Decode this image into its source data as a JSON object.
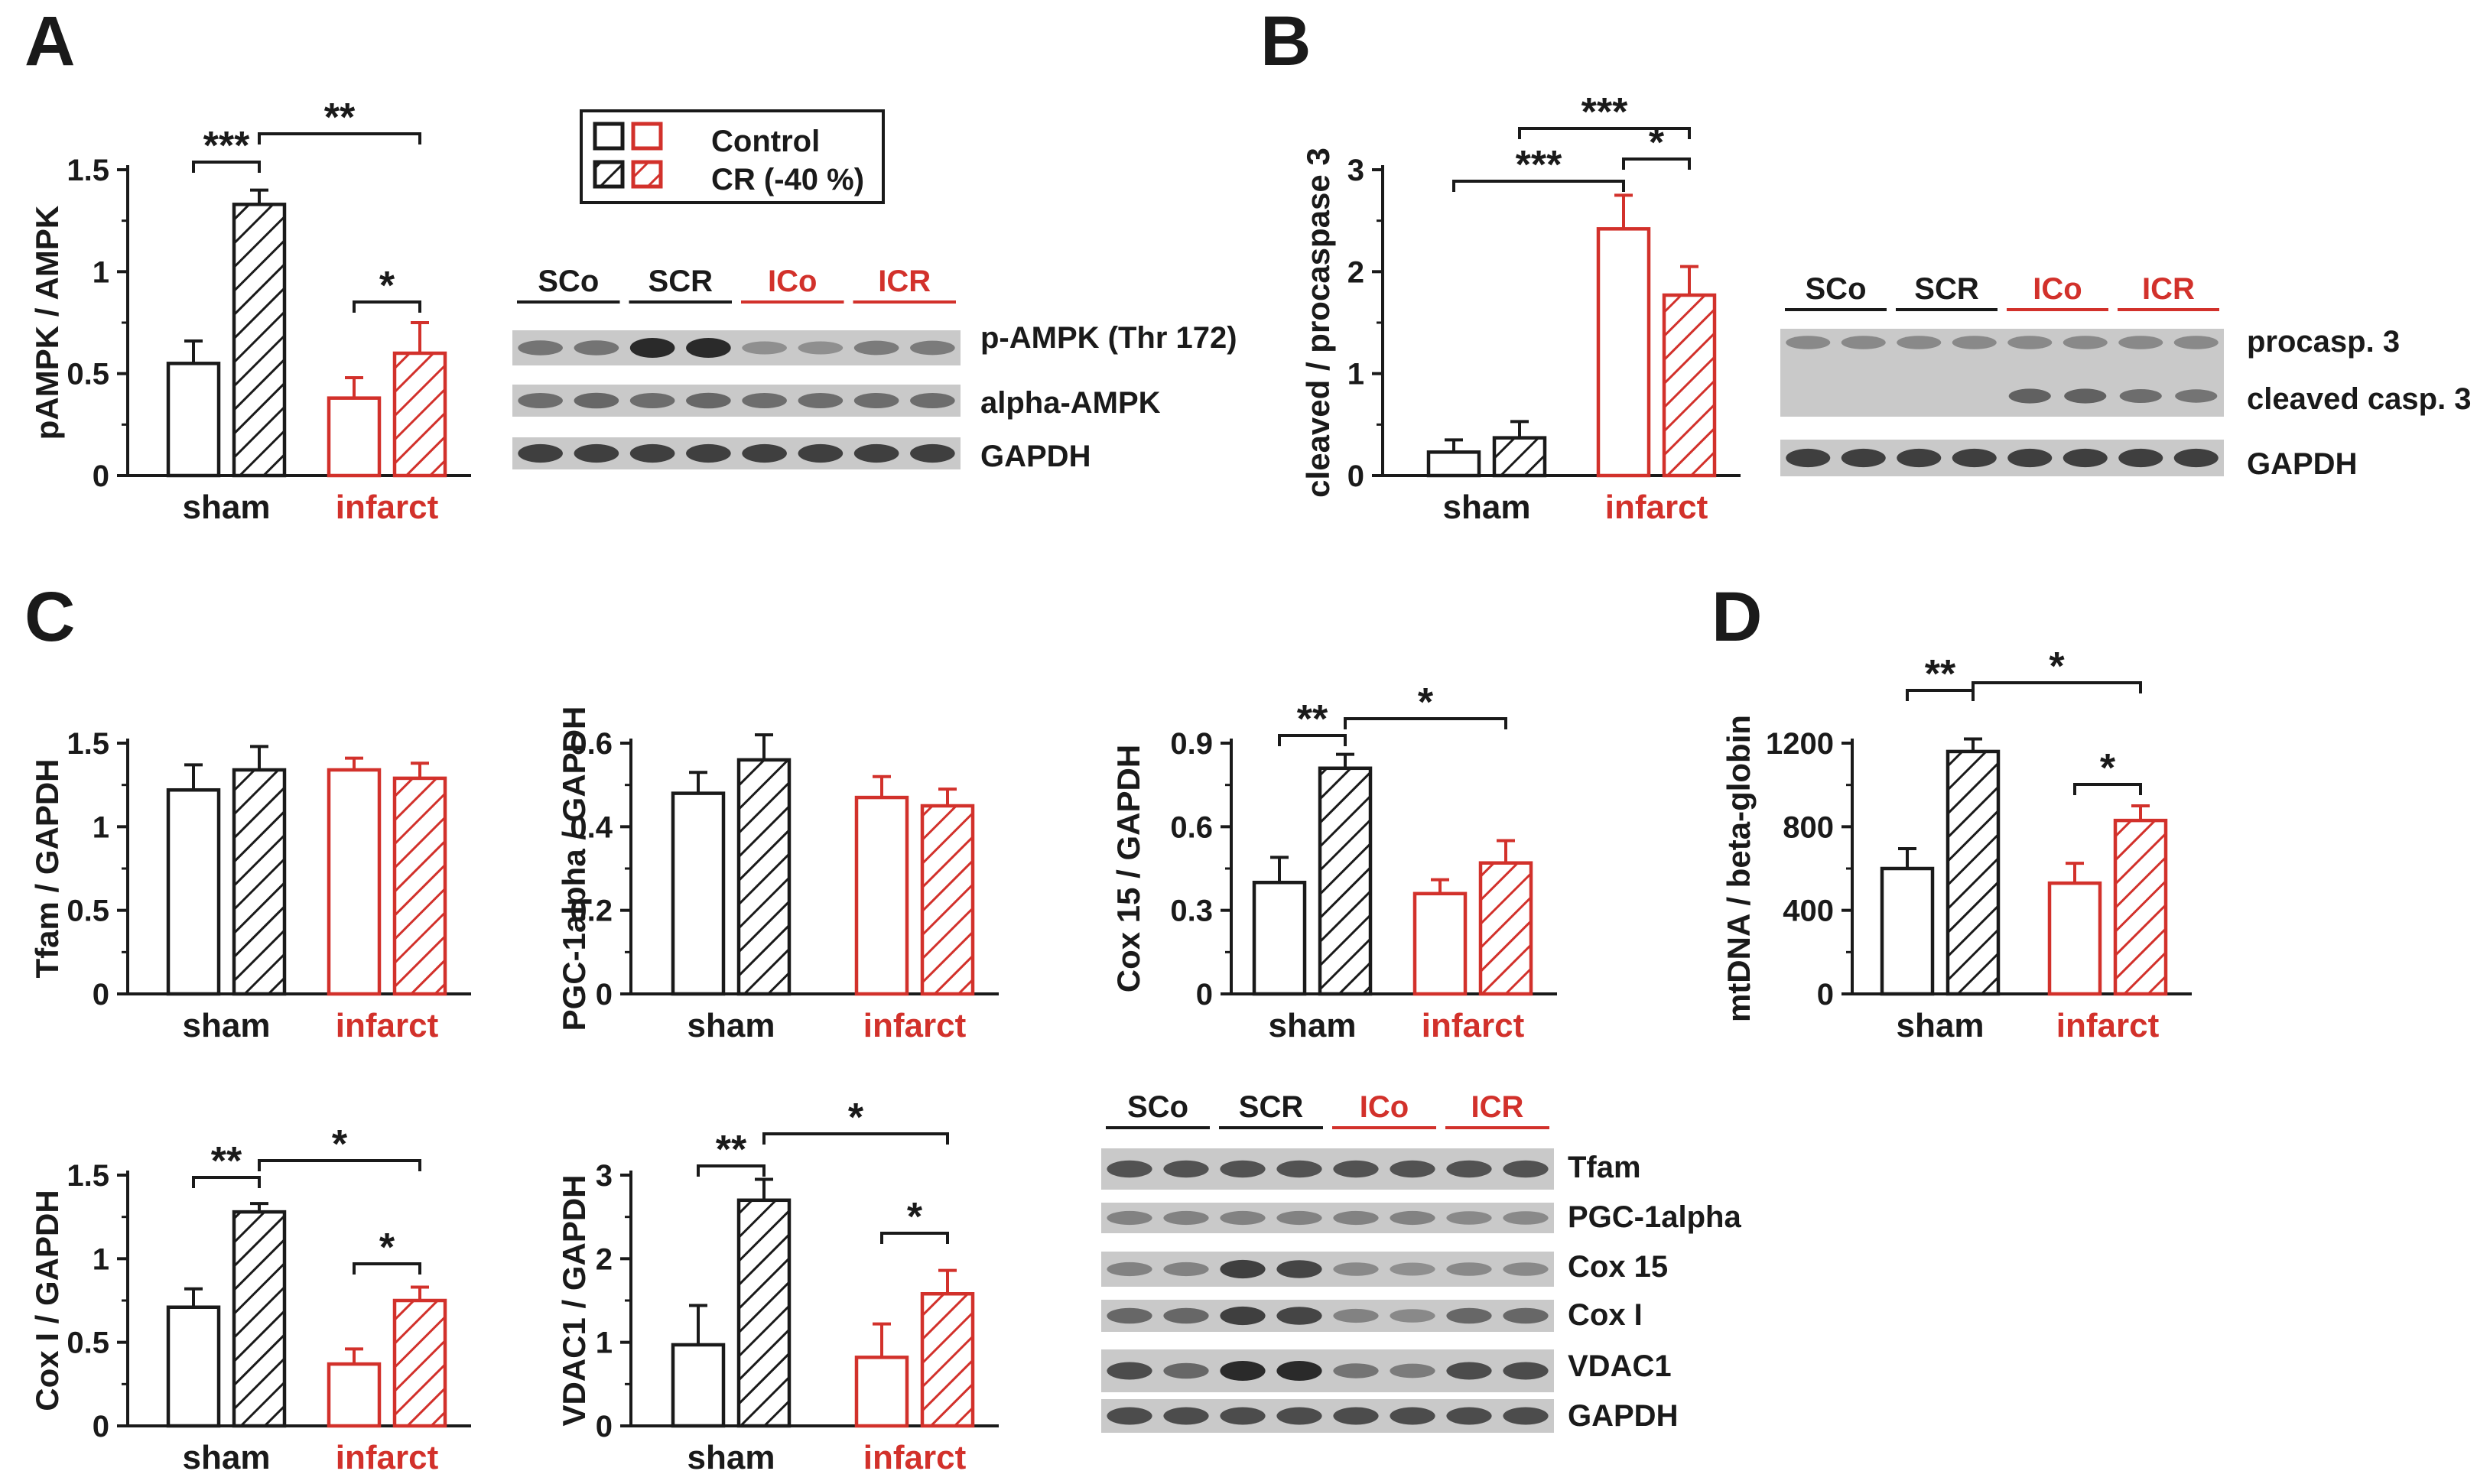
{
  "colors": {
    "sham": "#1a1a1a",
    "infarct": "#d2312b",
    "blot_bg": "#c9c9c9",
    "band": "#2a2a2a"
  },
  "legend": {
    "control": "Control",
    "cr": "CR (-40 %)"
  },
  "panel_labels": {
    "A": "A",
    "B": "B",
    "C": "C",
    "D": "D"
  },
  "groups": {
    "sham": "sham",
    "infarct": "infarct"
  },
  "lanes": {
    "sco": "SCo",
    "scr": "SCR",
    "ico": "ICo",
    "icr": "ICR"
  },
  "chart_data": [
    {
      "id": "A",
      "type": "bar",
      "ylabel": "pAMPK / AMPK",
      "ylim": [
        0,
        1.5
      ],
      "ticks": [
        "0",
        "0.5",
        "1",
        "1.5"
      ],
      "categories": [
        "sham",
        "infarct"
      ],
      "series": [
        {
          "name": "Control",
          "values": [
            0.55,
            0.38
          ],
          "errors": [
            0.11,
            0.1
          ]
        },
        {
          "name": "CR (-40 %)",
          "values": [
            1.33,
            0.6
          ],
          "errors": [
            0.07,
            0.15
          ]
        }
      ],
      "significance": [
        {
          "between": "sham Control vs sham CR",
          "label": "***"
        },
        {
          "between": "sham CR vs infarct CR",
          "label": "**"
        },
        {
          "between": "infarct Control vs infarct CR",
          "label": "*"
        }
      ]
    },
    {
      "id": "B",
      "type": "bar",
      "ylabel": "cleaved / procaspase 3",
      "ylim": [
        0,
        3
      ],
      "ticks": [
        "0",
        "1",
        "2",
        "3"
      ],
      "categories": [
        "sham",
        "infarct"
      ],
      "series": [
        {
          "name": "Control",
          "values": [
            0.23,
            2.42
          ],
          "errors": [
            0.12,
            0.33
          ]
        },
        {
          "name": "CR (-40 %)",
          "values": [
            0.37,
            1.77
          ],
          "errors": [
            0.16,
            0.28
          ]
        }
      ],
      "significance": [
        {
          "between": "sham Control vs infarct Control",
          "label": "***"
        },
        {
          "between": "sham CR vs infarct CR",
          "label": "***"
        },
        {
          "between": "infarct Control vs infarct CR",
          "label": "*"
        }
      ]
    },
    {
      "id": "C1",
      "type": "bar",
      "ylabel": "Tfam / GAPDH",
      "ylim": [
        0,
        1.5
      ],
      "ticks": [
        "0",
        "0.5",
        "1",
        "1.5"
      ],
      "categories": [
        "sham",
        "infarct"
      ],
      "series": [
        {
          "name": "Control",
          "values": [
            1.22,
            1.34
          ],
          "errors": [
            0.15,
            0.07
          ]
        },
        {
          "name": "CR (-40 %)",
          "values": [
            1.34,
            1.29
          ],
          "errors": [
            0.14,
            0.09
          ]
        }
      ],
      "significance": []
    },
    {
      "id": "C2",
      "type": "bar",
      "ylabel": "PGC-1alpha / GAPDH",
      "ylim": [
        0,
        0.6
      ],
      "ticks": [
        "0",
        "0.2",
        "0.4",
        "0.6"
      ],
      "categories": [
        "sham",
        "infarct"
      ],
      "series": [
        {
          "name": "Control",
          "values": [
            0.48,
            0.47
          ],
          "errors": [
            0.05,
            0.05
          ]
        },
        {
          "name": "CR (-40 %)",
          "values": [
            0.56,
            0.45
          ],
          "errors": [
            0.06,
            0.04
          ]
        }
      ],
      "significance": []
    },
    {
      "id": "C3",
      "type": "bar",
      "ylabel": "Cox 15 / GAPDH",
      "ylim": [
        0,
        0.9
      ],
      "ticks": [
        "0",
        "0.3",
        "0.6",
        "0.9"
      ],
      "categories": [
        "sham",
        "infarct"
      ],
      "series": [
        {
          "name": "Control",
          "values": [
            0.4,
            0.36
          ],
          "errors": [
            0.09,
            0.05
          ]
        },
        {
          "name": "CR (-40 %)",
          "values": [
            0.81,
            0.47
          ],
          "errors": [
            0.05,
            0.08
          ]
        }
      ],
      "significance": [
        {
          "between": "sham Control vs sham CR",
          "label": "**"
        },
        {
          "between": "sham CR vs infarct CR",
          "label": "*"
        }
      ]
    },
    {
      "id": "D",
      "type": "bar",
      "ylabel": "mtDNA / beta-globin",
      "ylim": [
        0,
        1200
      ],
      "ticks": [
        "0",
        "400",
        "800",
        "1200"
      ],
      "categories": [
        "sham",
        "infarct"
      ],
      "series": [
        {
          "name": "Control",
          "values": [
            600,
            530
          ],
          "errors": [
            95,
            95
          ]
        },
        {
          "name": "CR (-40 %)",
          "values": [
            1160,
            830
          ],
          "errors": [
            60,
            70
          ]
        }
      ],
      "significance": [
        {
          "between": "sham Control vs sham CR",
          "label": "**"
        },
        {
          "between": "sham CR vs infarct CR",
          "label": "*"
        },
        {
          "between": "infarct Control vs infarct CR",
          "label": "*"
        }
      ]
    },
    {
      "id": "C4",
      "type": "bar",
      "ylabel": "Cox I / GAPDH",
      "ylim": [
        0,
        1.5
      ],
      "ticks": [
        "0",
        "0.5",
        "1",
        "1.5"
      ],
      "categories": [
        "sham",
        "infarct"
      ],
      "series": [
        {
          "name": "Control",
          "values": [
            0.71,
            0.37
          ],
          "errors": [
            0.11,
            0.09
          ]
        },
        {
          "name": "CR (-40 %)",
          "values": [
            1.28,
            0.75
          ],
          "errors": [
            0.05,
            0.08
          ]
        }
      ],
      "significance": [
        {
          "between": "sham Control vs sham CR",
          "label": "**"
        },
        {
          "between": "sham CR vs infarct CR",
          "label": "*"
        },
        {
          "between": "infarct Control vs infarct CR",
          "label": "*"
        }
      ]
    },
    {
      "id": "C5",
      "type": "bar",
      "ylabel": "VDAC1 / GAPDH",
      "ylim": [
        0,
        3
      ],
      "ticks": [
        "0",
        "1",
        "2",
        "3"
      ],
      "categories": [
        "sham",
        "infarct"
      ],
      "series": [
        {
          "name": "Control",
          "values": [
            0.97,
            0.82
          ],
          "errors": [
            0.47,
            0.4
          ]
        },
        {
          "name": "CR (-40 %)",
          "values": [
            2.7,
            1.58
          ],
          "errors": [
            0.25,
            0.28
          ]
        }
      ],
      "significance": [
        {
          "between": "sham Control vs sham CR",
          "label": "**"
        },
        {
          "between": "sham CR vs infarct CR",
          "label": "*"
        },
        {
          "between": "infarct Control vs infarct CR",
          "label": "*"
        }
      ]
    }
  ],
  "blots": [
    {
      "id": "blotA",
      "rows": [
        {
          "label": "p-AMPK (Thr 172)",
          "intensity": [
            0.45,
            0.45,
            1.0,
            1.0,
            0.25,
            0.25,
            0.4,
            0.4
          ],
          "type": "single"
        },
        {
          "label": "alpha-AMPK",
          "intensity": [
            0.5,
            0.55,
            0.5,
            0.55,
            0.5,
            0.5,
            0.5,
            0.5
          ],
          "type": "single"
        },
        {
          "label": "GAPDH",
          "intensity": [
            0.85,
            0.85,
            0.85,
            0.85,
            0.85,
            0.85,
            0.85,
            0.85
          ],
          "type": "single"
        }
      ]
    },
    {
      "id": "blotB",
      "rows": [
        {
          "label": "procasp. 3",
          "sublabel": "cleaved casp. 3",
          "intensity": [
            0.3,
            0.3,
            0.3,
            0.3,
            0.3,
            0.3,
            0.3,
            0.3
          ],
          "cleaved": [
            0.0,
            0.0,
            0.0,
            0.0,
            0.6,
            0.6,
            0.5,
            0.45
          ],
          "type": "double"
        },
        {
          "label": "GAPDH",
          "intensity": [
            0.85,
            0.85,
            0.85,
            0.85,
            0.85,
            0.85,
            0.85,
            0.85
          ],
          "type": "single"
        }
      ]
    },
    {
      "id": "blotC",
      "rows": [
        {
          "label": "Tfam",
          "intensity": [
            0.7,
            0.7,
            0.7,
            0.7,
            0.7,
            0.7,
            0.7,
            0.7
          ],
          "type": "single"
        },
        {
          "label": "PGC-1alpha",
          "intensity": [
            0.35,
            0.35,
            0.35,
            0.35,
            0.35,
            0.35,
            0.3,
            0.3
          ],
          "type": "single"
        },
        {
          "label": "Cox 15",
          "intensity": [
            0.35,
            0.35,
            0.85,
            0.8,
            0.3,
            0.25,
            0.3,
            0.3
          ],
          "type": "single"
        },
        {
          "label": "Cox I",
          "intensity": [
            0.55,
            0.55,
            0.85,
            0.8,
            0.35,
            0.3,
            0.55,
            0.55
          ],
          "type": "single"
        },
        {
          "label": "VDAC1",
          "intensity": [
            0.75,
            0.55,
            1.0,
            1.0,
            0.45,
            0.4,
            0.75,
            0.75
          ],
          "type": "single"
        },
        {
          "label": "GAPDH",
          "intensity": [
            0.75,
            0.75,
            0.75,
            0.75,
            0.75,
            0.75,
            0.75,
            0.75
          ],
          "type": "single"
        }
      ]
    }
  ]
}
